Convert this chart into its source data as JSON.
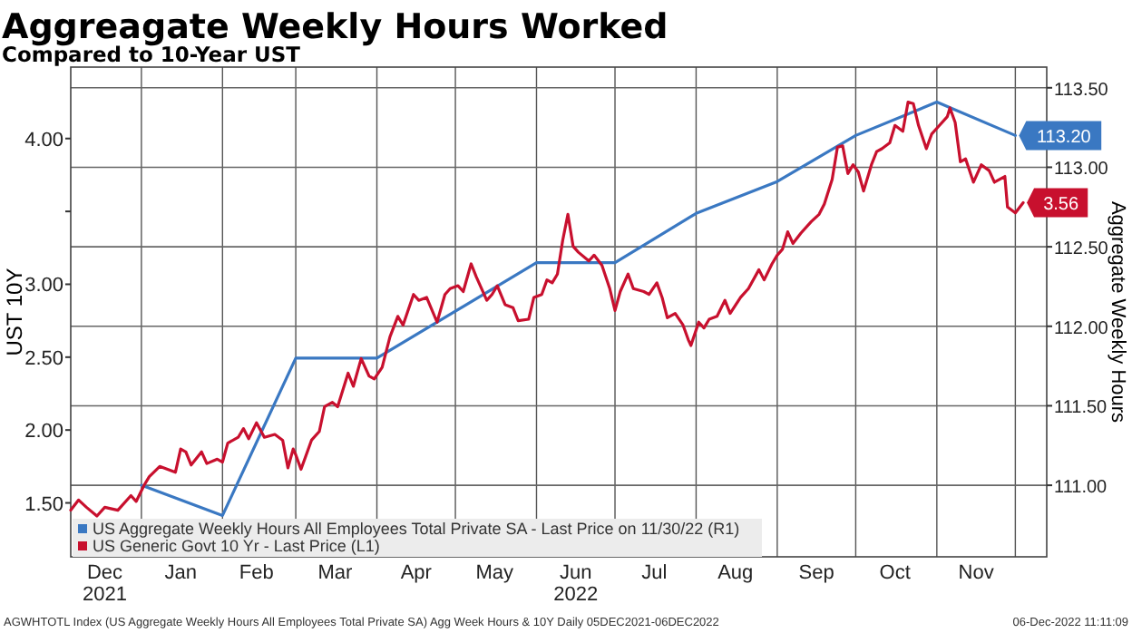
{
  "chart_data": {
    "type": "line",
    "title": "Aggreagate Weekly Hours Worked",
    "subtitle": "Compared to 10-Year UST",
    "ylabel": "UST 10Y",
    "y2label": "Aggregate Weekly Hours",
    "xlim": [
      "2021-12-05",
      "2022-12-13"
    ],
    "xticks": [
      {
        "value": "2022-01-01",
        "label": null
      },
      {
        "value": "2022-02-01",
        "label": null
      },
      {
        "value": "2022-03-01",
        "label": null
      },
      {
        "value": "2022-04-01",
        "label": null
      },
      {
        "value": "2022-05-01",
        "label": null
      },
      {
        "value": "2022-06-01",
        "label": null
      },
      {
        "value": "2022-07-01",
        "label": null
      },
      {
        "value": "2022-08-01",
        "label": null
      },
      {
        "value": "2022-09-01",
        "label": null
      },
      {
        "value": "2022-10-01",
        "label": null
      },
      {
        "value": "2022-11-01",
        "label": null
      },
      {
        "value": "2022-12-01",
        "label": null
      },
      {
        "value": "2021-12-18",
        "label": "Dec\n2021"
      },
      {
        "value": "2022-01-16",
        "label": "Jan"
      },
      {
        "value": "2022-02-14",
        "label": "Feb"
      },
      {
        "value": "2022-03-16",
        "label": "Mar"
      },
      {
        "value": "2022-04-16",
        "label": "Apr"
      },
      {
        "value": "2022-05-16",
        "label": "May"
      },
      {
        "value": "2022-06-16",
        "label": "Jun\n2022"
      },
      {
        "value": "2022-07-16",
        "label": "Jul"
      },
      {
        "value": "2022-08-16",
        "label": "Aug"
      },
      {
        "value": "2022-09-16",
        "label": "Sep"
      },
      {
        "value": "2022-10-16",
        "label": "Oct"
      },
      {
        "value": "2022-11-16",
        "label": "Nov"
      }
    ],
    "ylim": [
      1.13,
      4.49
    ],
    "yticks": [
      {
        "value": 1.5,
        "label": "1.50"
      },
      {
        "value": 2,
        "label": "2.00"
      },
      {
        "value": 2.5,
        "label": "2.50"
      },
      {
        "value": 3,
        "label": "3.00"
      },
      {
        "value": 3.5,
        "label": null
      },
      {
        "value": 4,
        "label": "4.00"
      }
    ],
    "y2lim": [
      110.55,
      113.63
    ],
    "y2ticks": [
      {
        "value": 111,
        "label": "111.00"
      },
      {
        "value": 111.5,
        "label": "111.50"
      },
      {
        "value": 112,
        "label": "112.00"
      },
      {
        "value": 112.5,
        "label": "112.50"
      },
      {
        "value": 113,
        "label": "113.00"
      },
      {
        "value": 113.5,
        "label": "113.50"
      }
    ],
    "grid": true,
    "legend": "bottom left",
    "series": [
      {
        "name": "US Aggregate Weekly Hours All Employees Total Private SA - Last Price on 11/30/22 (R1)",
        "color": "#3a78c2",
        "axis": "y2",
        "x": [
          "2022-01-01",
          "2022-02-01",
          "2022-03-01",
          "2022-04-01",
          "2022-06-01",
          "2022-07-01",
          "2022-08-01",
          "2022-09-01",
          "2022-10-01",
          "2022-11-01",
          "2022-12-01"
        ],
        "values": [
          111.0,
          110.81,
          111.8,
          111.8,
          112.4,
          112.4,
          112.71,
          112.91,
          113.2,
          113.41,
          113.2
        ],
        "value_labels": [
          null,
          null,
          null,
          null,
          null,
          null,
          null,
          null,
          null,
          null,
          "113.20"
        ]
      },
      {
        "name": "US Generic Govt 10 Yr - Last Price (L1)",
        "color": "#c8102e",
        "x": [
          "2021-12-05",
          "2021-12-08",
          "2021-12-11",
          "2021-12-15",
          "2021-12-18",
          "2021-12-23",
          "2021-12-28",
          "2021-12-30",
          "2022-01-02",
          "2022-01-04",
          "2022-01-08",
          "2022-01-11",
          "2022-01-14",
          "2022-01-16",
          "2022-01-18",
          "2022-01-20",
          "2022-01-24",
          "2022-01-26",
          "2022-01-30",
          "2022-02-01",
          "2022-02-03",
          "2022-02-07",
          "2022-02-09",
          "2022-02-11",
          "2022-02-14",
          "2022-02-17",
          "2022-02-21",
          "2022-02-24",
          "2022-02-26",
          "2022-02-28",
          "2022-03-01",
          "2022-03-03",
          "2022-03-07",
          "2022-03-10",
          "2022-03-12",
          "2022-03-15",
          "2022-03-17",
          "2022-03-21",
          "2022-03-23",
          "2022-03-26",
          "2022-03-29",
          "2022-03-31",
          "2022-04-03",
          "2022-04-06",
          "2022-04-09",
          "2022-04-11",
          "2022-04-15",
          "2022-04-17",
          "2022-04-20",
          "2022-04-24",
          "2022-04-27",
          "2022-04-29",
          "2022-05-02",
          "2022-05-04",
          "2022-05-07",
          "2022-05-09",
          "2022-05-13",
          "2022-05-15",
          "2022-05-17",
          "2022-05-20",
          "2022-05-23",
          "2022-05-25",
          "2022-05-29",
          "2022-05-31",
          "2022-06-03",
          "2022-06-05",
          "2022-06-07",
          "2022-06-09",
          "2022-06-11",
          "2022-06-13",
          "2022-06-15",
          "2022-06-17",
          "2022-06-21",
          "2022-06-23",
          "2022-06-26",
          "2022-06-29",
          "2022-07-01",
          "2022-07-03",
          "2022-07-06",
          "2022-07-08",
          "2022-07-12",
          "2022-07-14",
          "2022-07-17",
          "2022-07-19",
          "2022-07-21",
          "2022-07-24",
          "2022-07-27",
          "2022-07-29",
          "2022-07-30",
          "2022-08-02",
          "2022-08-04",
          "2022-08-06",
          "2022-08-09",
          "2022-08-12",
          "2022-08-14",
          "2022-08-18",
          "2022-08-21",
          "2022-08-25",
          "2022-08-27",
          "2022-08-30",
          "2022-09-01",
          "2022-09-03",
          "2022-09-05",
          "2022-09-07",
          "2022-09-10",
          "2022-09-14",
          "2022-09-17",
          "2022-09-19",
          "2022-09-22",
          "2022-09-24",
          "2022-09-26",
          "2022-09-28",
          "2022-09-30",
          "2022-10-02",
          "2022-10-04",
          "2022-10-07",
          "2022-10-09",
          "2022-10-11",
          "2022-10-14",
          "2022-10-16",
          "2022-10-19",
          "2022-10-21",
          "2022-10-23",
          "2022-10-25",
          "2022-10-28",
          "2022-10-30",
          "2022-11-02",
          "2022-11-05",
          "2022-11-06",
          "2022-11-08",
          "2022-11-10",
          "2022-11-12",
          "2022-11-15",
          "2022-11-18",
          "2022-11-21",
          "2022-11-23",
          "2022-11-27",
          "2022-11-28",
          "2022-12-01",
          "2022-12-04"
        ],
        "values": [
          1.45,
          1.52,
          1.47,
          1.41,
          1.47,
          1.45,
          1.55,
          1.51,
          1.62,
          1.68,
          1.75,
          1.73,
          1.71,
          1.87,
          1.85,
          1.76,
          1.85,
          1.77,
          1.8,
          1.78,
          1.91,
          1.95,
          2.01,
          1.94,
          2.05,
          1.95,
          1.97,
          1.93,
          1.74,
          1.87,
          1.83,
          1.73,
          1.93,
          1.99,
          2.16,
          2.19,
          2.16,
          2.39,
          2.3,
          2.49,
          2.37,
          2.35,
          2.43,
          2.64,
          2.78,
          2.72,
          2.93,
          2.89,
          2.91,
          2.74,
          2.93,
          2.97,
          2.99,
          2.95,
          3.14,
          3.05,
          2.89,
          2.93,
          2.99,
          2.86,
          2.84,
          2.75,
          2.76,
          2.91,
          2.93,
          3.03,
          3.01,
          3.07,
          3.3,
          3.48,
          3.26,
          3.22,
          3.16,
          3.2,
          3.13,
          2.97,
          2.82,
          2.95,
          3.07,
          2.97,
          2.95,
          2.93,
          3.01,
          2.91,
          2.77,
          2.8,
          2.72,
          2.62,
          2.58,
          2.74,
          2.7,
          2.76,
          2.78,
          2.89,
          2.8,
          2.91,
          2.97,
          3.1,
          3.03,
          3.14,
          3.2,
          3.24,
          3.36,
          3.28,
          3.35,
          3.43,
          3.48,
          3.55,
          3.72,
          3.94,
          3.95,
          3.76,
          3.82,
          3.77,
          3.64,
          3.82,
          3.91,
          3.93,
          3.97,
          4.09,
          4.05,
          4.25,
          4.24,
          4.09,
          3.93,
          4.03,
          4.09,
          4.15,
          4.21,
          4.11,
          3.84,
          3.86,
          3.7,
          3.82,
          3.78,
          3.7,
          3.74,
          3.53,
          3.49,
          3.56
        ],
        "value_labels": [
          null,
          null,
          null,
          null,
          null,
          null,
          null,
          null,
          null,
          null,
          null,
          null,
          null,
          null,
          null,
          null,
          null,
          null,
          null,
          null,
          null,
          null,
          null,
          null,
          null,
          null,
          null,
          null,
          null,
          null,
          null,
          null,
          null,
          null,
          null,
          null,
          null,
          null,
          null,
          null,
          null,
          null,
          null,
          null,
          null,
          null,
          null,
          null,
          null,
          null,
          null,
          null,
          null,
          null,
          null,
          null,
          null,
          null,
          null,
          null,
          null,
          null,
          null,
          null,
          null,
          null,
          null,
          null,
          null,
          null,
          null,
          null,
          null,
          null,
          null,
          null,
          null,
          null,
          null,
          null,
          null,
          null,
          null,
          null,
          null,
          null,
          null,
          null,
          null,
          null,
          null,
          null,
          null,
          null,
          null,
          null,
          null,
          null,
          null,
          null,
          null,
          null,
          null,
          null,
          null,
          null,
          null,
          null,
          null,
          null,
          null,
          null,
          null,
          null,
          null,
          null,
          null,
          null,
          null,
          null,
          null,
          null,
          null,
          null,
          null,
          null,
          null,
          null,
          null,
          null,
          null,
          null,
          null,
          null,
          null,
          null,
          null,
          null,
          null,
          "3.56"
        ]
      }
    ],
    "annotations": [
      "AGWHTOTL Index (US Aggregate Weekly Hours All Employees Total Private SA) Agg Week Hours & 10Y  Daily 05DEC2021-06DEC2022",
      "06-Dec-2022 11:11:09"
    ]
  }
}
